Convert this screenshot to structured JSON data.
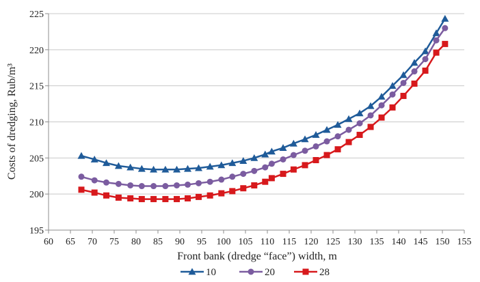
{
  "chart_data": {
    "type": "line",
    "title": "",
    "xlabel": "Front bank (dredge “face”) width, m",
    "ylabel": "Costs of dredging, Rub/m³",
    "xlim": [
      60,
      155
    ],
    "ylim": [
      195,
      225
    ],
    "xticks": [
      60,
      65,
      70,
      75,
      80,
      85,
      90,
      95,
      100,
      105,
      110,
      115,
      120,
      125,
      130,
      135,
      140,
      145,
      150,
      155
    ],
    "yticks": [
      195,
      200,
      205,
      210,
      215,
      220,
      225
    ],
    "grid": "horizontal",
    "legend_position": "bottom",
    "x": [
      67.5,
      70.5,
      73.2,
      76.0,
      78.7,
      81.3,
      84.0,
      86.7,
      89.3,
      91.8,
      94.3,
      96.9,
      99.5,
      102.0,
      104.5,
      107.0,
      109.5,
      111.0,
      113.6,
      116.0,
      118.6,
      121.1,
      123.6,
      126.1,
      128.6,
      131.1,
      133.6,
      136.1,
      138.6,
      141.1,
      143.6,
      146.1,
      148.6,
      150.6
    ],
    "series": [
      {
        "name": "10",
        "color": "#1f5b99",
        "marker": "triangle",
        "values": [
          205.3,
          204.8,
          204.3,
          203.9,
          203.7,
          203.5,
          203.4,
          203.4,
          203.4,
          203.5,
          203.6,
          203.8,
          204.0,
          204.3,
          204.6,
          205.0,
          205.5,
          205.9,
          206.4,
          207.0,
          207.6,
          208.2,
          208.9,
          209.6,
          210.4,
          211.2,
          212.2,
          213.5,
          215.0,
          216.5,
          218.2,
          219.8,
          222.3,
          224.3
        ]
      },
      {
        "name": "20",
        "color": "#7b5ca0",
        "marker": "circle",
        "values": [
          202.4,
          201.9,
          201.6,
          201.4,
          201.2,
          201.1,
          201.1,
          201.1,
          201.2,
          201.3,
          201.5,
          201.7,
          202.0,
          202.4,
          202.8,
          203.2,
          203.7,
          204.2,
          204.8,
          205.4,
          206.0,
          206.6,
          207.3,
          208.0,
          208.9,
          209.8,
          210.9,
          212.3,
          213.8,
          215.4,
          217.0,
          218.7,
          221.3,
          223.0
        ]
      },
      {
        "name": "28",
        "color": "#d7191c",
        "marker": "square",
        "values": [
          200.6,
          200.2,
          199.8,
          199.5,
          199.4,
          199.3,
          199.3,
          199.3,
          199.3,
          199.4,
          199.6,
          199.8,
          200.1,
          200.4,
          200.8,
          201.2,
          201.7,
          202.2,
          202.8,
          203.4,
          204.0,
          204.7,
          205.4,
          206.2,
          207.2,
          208.2,
          209.3,
          210.6,
          212.0,
          213.6,
          215.3,
          217.1,
          219.6,
          220.8
        ]
      }
    ]
  }
}
